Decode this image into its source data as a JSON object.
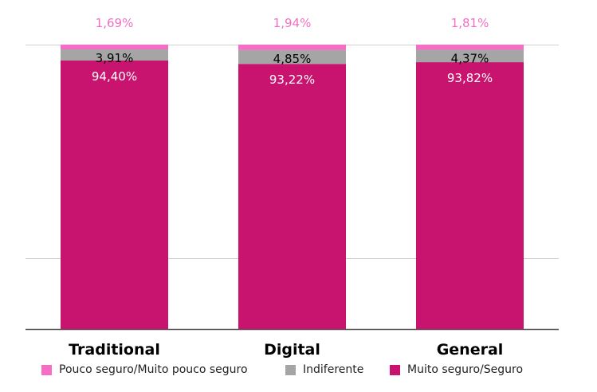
{
  "chart_data": {
    "type": "bar",
    "stacked": true,
    "categories": [
      "Traditional",
      "Digital",
      "General"
    ],
    "ylim": [
      0,
      100
    ],
    "grid": true,
    "legend_position": "bottom",
    "series": [
      {
        "name": "Muito seguro/Seguro",
        "values": [
          94.4,
          93.22,
          93.82
        ],
        "labels": [
          "94,40%",
          "93,22%",
          "93,82%"
        ],
        "color": "#C8146E",
        "label_color": "#ffffff"
      },
      {
        "name": "Indiferente",
        "values": [
          3.91,
          4.85,
          4.37
        ],
        "labels": [
          "3,91%",
          "4,85%",
          "4,37%"
        ],
        "color": "#A5A5A5",
        "label_color": "#000000"
      },
      {
        "name": "Pouco seguro/Muito pouco seguro",
        "values": [
          1.69,
          1.94,
          1.81
        ],
        "labels": [
          "1,69%",
          "1,94%",
          "1,81%"
        ],
        "color": "#F46FC4",
        "label_color": "#F46FC4"
      }
    ]
  },
  "legend": {
    "items": [
      {
        "label": "Pouco seguro/Muito pouco seguro",
        "color": "#F46FC4"
      },
      {
        "label": "Indiferente",
        "color": "#A5A5A5"
      },
      {
        "label": "Muito seguro/Seguro",
        "color": "#C8146E"
      }
    ]
  }
}
